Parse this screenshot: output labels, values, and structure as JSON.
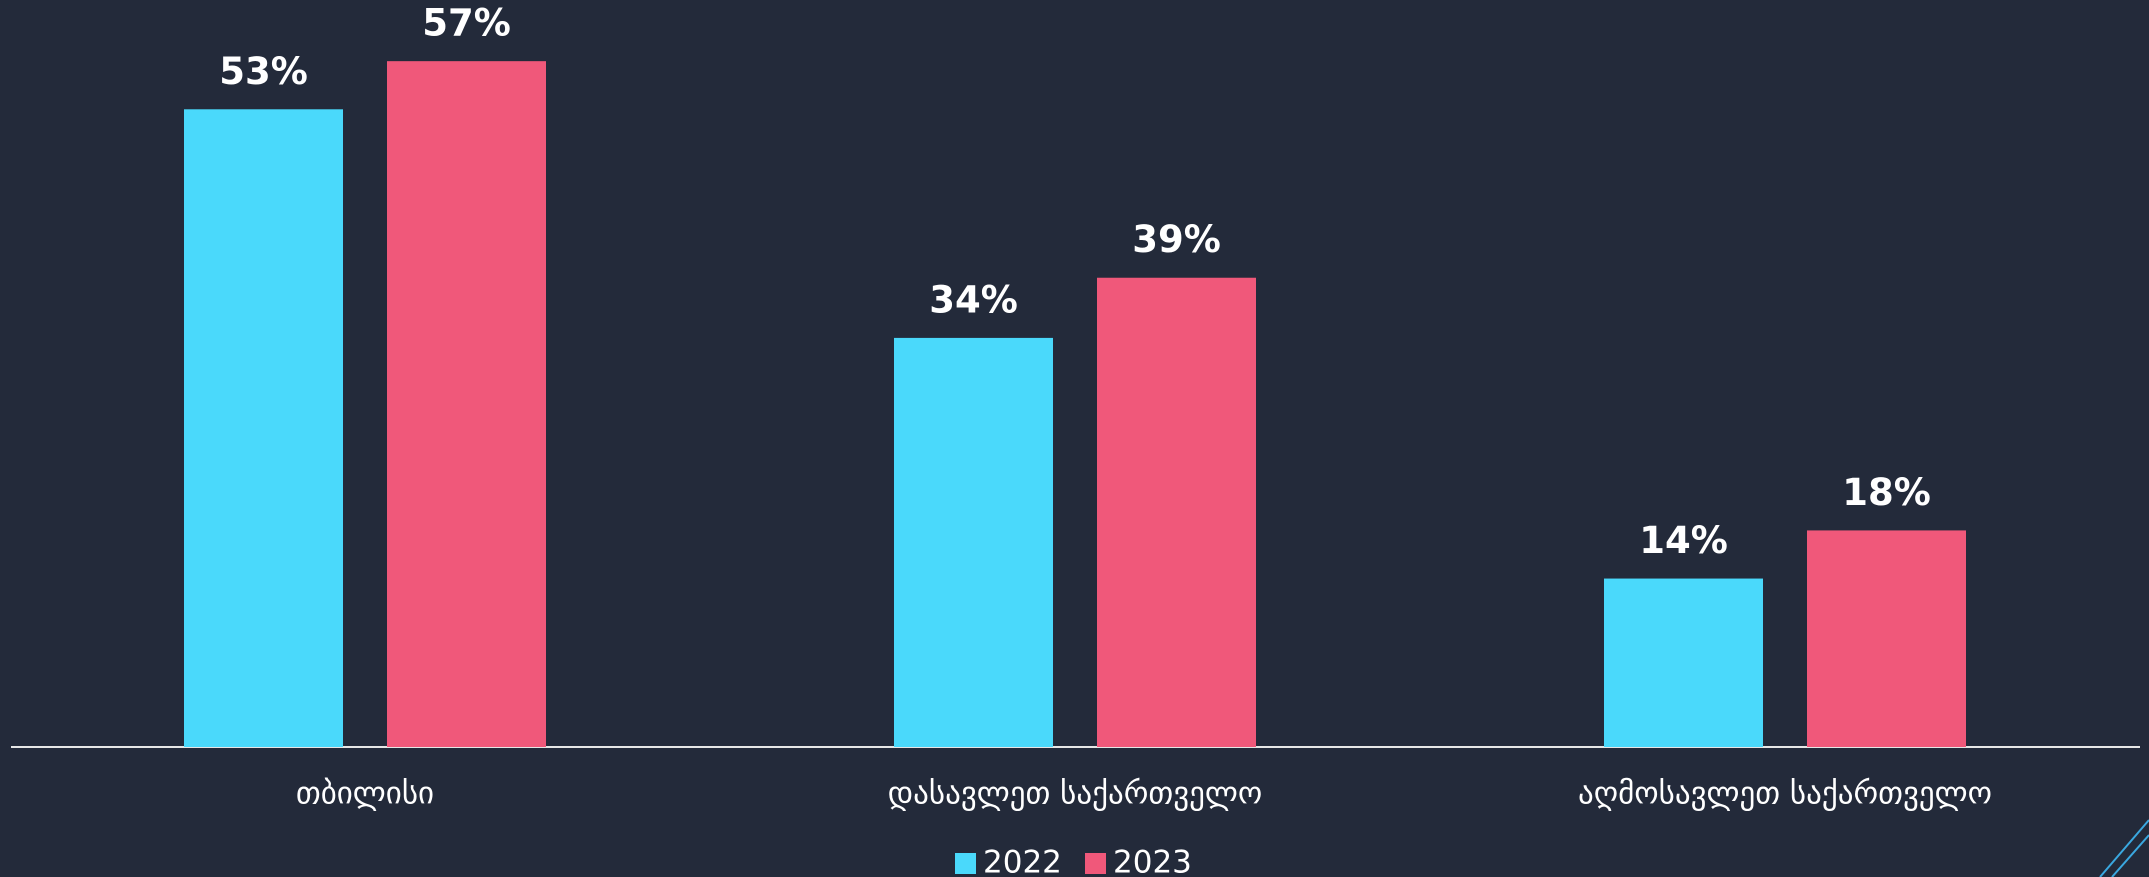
{
  "chart_data": {
    "type": "bar",
    "categories": [
      "თბილისი",
      "დასავლეთ საქართველო",
      "აღმოსავლეთ საქართველო"
    ],
    "series": [
      {
        "name": "2022",
        "color": "#4ad9fb",
        "values": [
          53,
          34,
          14
        ],
        "value_labels": [
          "53%",
          "34%",
          "14%"
        ]
      },
      {
        "name": "2023",
        "color": "#f0587a",
        "values": [
          57,
          39,
          18
        ],
        "value_labels": [
          "57%",
          "39%",
          "18%"
        ]
      }
    ],
    "ylim": [
      0,
      62
    ],
    "grid": false,
    "legend": "bottom"
  }
}
